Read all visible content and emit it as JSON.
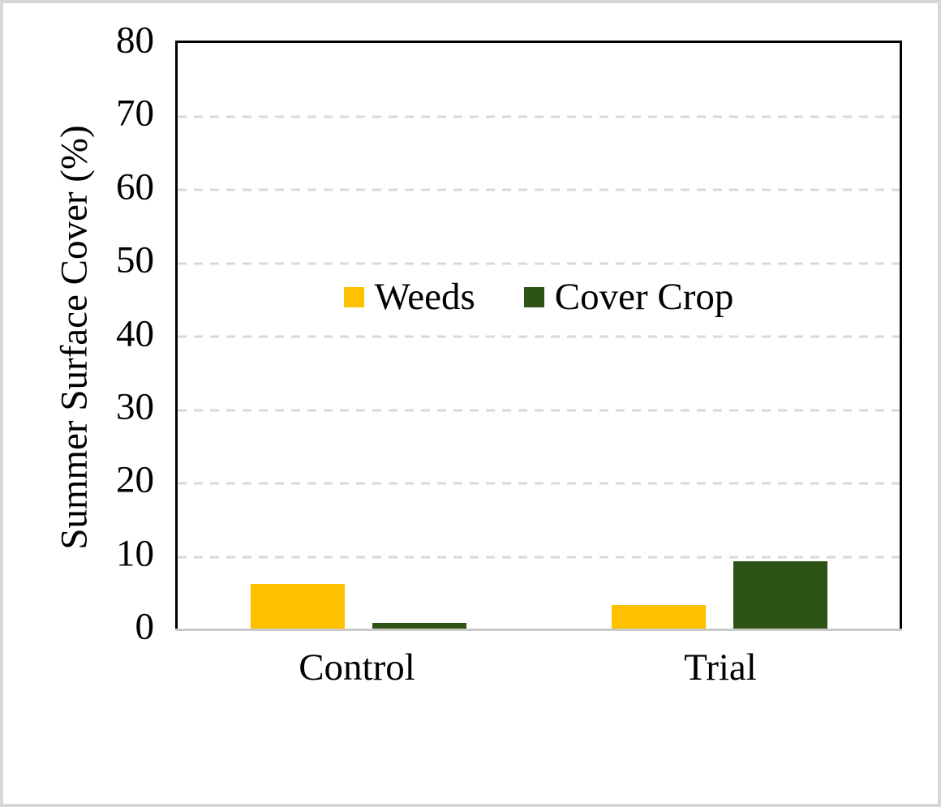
{
  "figure": {
    "background": "#FFFFFF",
    "frame_border_color": "#D7D7D7"
  },
  "chart_data": {
    "type": "bar",
    "title": "",
    "ylabel": "Summer Surface Cover (%)",
    "xlabel": "",
    "categories": [
      "Control",
      "Trial"
    ],
    "series": [
      {
        "name": "Weeds",
        "color": "#FFC000",
        "values": [
          6.3,
          3.4
        ]
      },
      {
        "name": "Cover Crop",
        "color": "#2D5416",
        "values": [
          1.0,
          9.4
        ]
      }
    ],
    "ylim": [
      0,
      80
    ],
    "yticks": [
      0,
      10,
      20,
      30,
      40,
      50,
      60,
      70,
      80
    ],
    "grid": "horizontal-dashed",
    "gridline_color": "#D9D9D9",
    "axis_line_color": "#C9C9C9",
    "plot_border_color": "#000000",
    "text_color": "#000000",
    "legend": {
      "position": "inside-top-center",
      "entries": [
        "Weeds",
        "Cover Crop"
      ]
    }
  }
}
